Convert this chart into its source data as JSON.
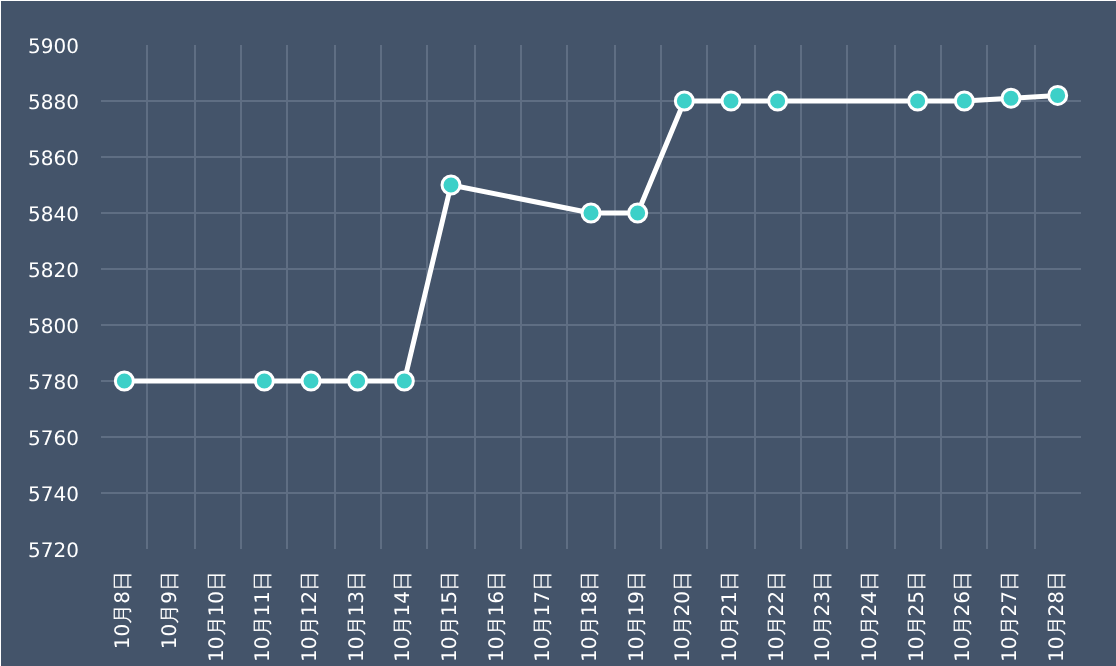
{
  "chart_data": {
    "type": "line",
    "categories": [
      "10月8日",
      "10月9日",
      "10月10日",
      "10月11日",
      "10月12日",
      "10月13日",
      "10月14日",
      "10月15日",
      "10月16日",
      "10月17日",
      "10月18日",
      "10月19日",
      "10月20日",
      "10月21日",
      "10月22日",
      "10月23日",
      "10月24日",
      "10月25日",
      "10月26日",
      "10月27日",
      "10月28日"
    ],
    "series": [
      {
        "color": "#ffffff",
        "values": [
          5780,
          null,
          null,
          5780,
          5780,
          5780,
          5780,
          5850,
          null,
          null,
          5840,
          5840,
          5880,
          5880,
          5880,
          null,
          null,
          5880,
          5880,
          5881,
          5882
        ]
      }
    ],
    "ylim": [
      5720,
      5900
    ],
    "yticks": [
      5720,
      5740,
      5760,
      5780,
      5800,
      5820,
      5840,
      5860,
      5880,
      5900
    ],
    "grid": true,
    "marker": "circle",
    "line_style": "solid"
  }
}
